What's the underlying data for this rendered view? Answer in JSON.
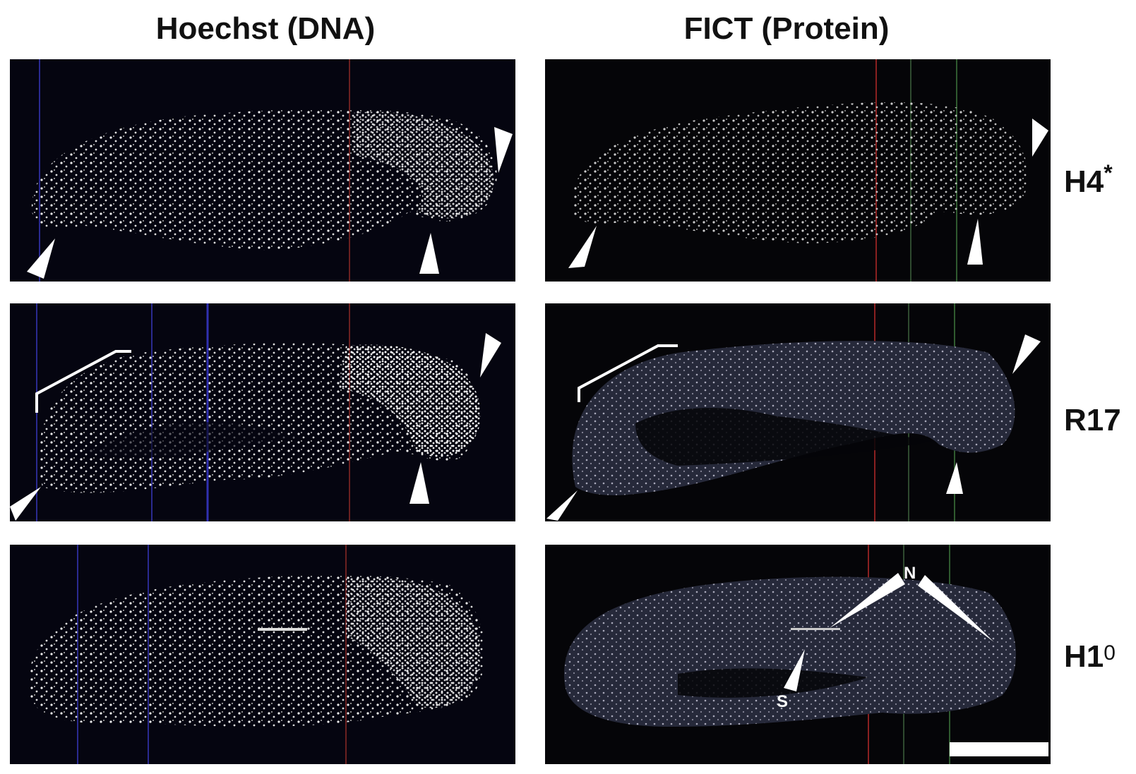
{
  "columns": [
    {
      "title": "Hoechst (DNA)"
    },
    {
      "title": "FICT (Protein)"
    }
  ],
  "rows": [
    {
      "label_main": "H4",
      "label_sup": "*"
    },
    {
      "label_main": "R17",
      "label_sup": ""
    },
    {
      "label_main": "H1",
      "label_sup": "0"
    }
  ],
  "annotations": {
    "nucleolus": "N",
    "s_marker": "S"
  },
  "colors": {
    "background": "#ffffff",
    "panel": "#050508",
    "nuclei": "#ffffff",
    "red_line": "#8a2020",
    "green_line": "#2f5a2f",
    "blue_line": "#2a2a90"
  },
  "scale_bar": true
}
